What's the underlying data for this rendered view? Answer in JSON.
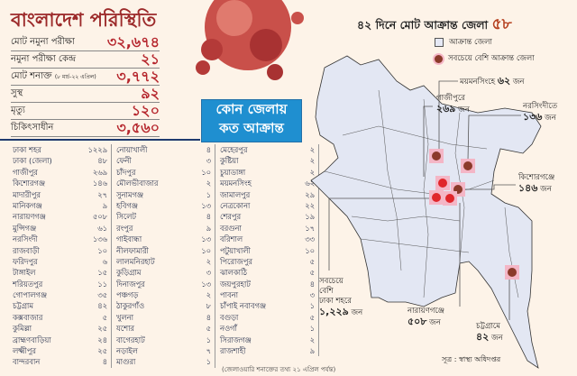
{
  "title": "বাংলাদেশ পরিস্থিতি",
  "stats": [
    {
      "label": "মোট নমুনা পরীক্ষা",
      "value": "৩২,৬৭৪"
    },
    {
      "label": "নমুনা পরীক্ষা কেন্দ্র",
      "value": "২১"
    },
    {
      "label": "মোট শনাক্ত",
      "note": "(৮ মার্চ-২২ এপ্রিল)",
      "value": "৩,৭৭২"
    },
    {
      "label": "সুস্থ",
      "value": "৯২"
    },
    {
      "label": "মৃত্যু",
      "value": "১২০"
    },
    {
      "label": "চিকিৎসাধীন",
      "value": "৩,৫৬০"
    }
  ],
  "district_box": {
    "line1": "কোন জেলায়",
    "line2": "কত আক্রান্ত"
  },
  "columns": [
    [
      [
        "ঢাকা শহর",
        "১২২৯"
      ],
      [
        "ঢাকা (জেলা)",
        "৪৮"
      ],
      [
        "গাজীপুর",
        "২৬৯"
      ],
      [
        "কিশোরগঞ্জ",
        "১৪৬"
      ],
      [
        "মাদারীপুর",
        "২৭"
      ],
      [
        "মানিকগঞ্জ",
        "৯"
      ],
      [
        "নারায়ণগঞ্জ",
        "৫০৮"
      ],
      [
        "মুন্সিগঞ্জ",
        "৬১"
      ],
      [
        "নরসিংদী",
        "১৩৬"
      ],
      [
        "রাজবাড়ী",
        "১০"
      ],
      [
        "ফরিদপুর",
        "৬"
      ],
      [
        "টাঙ্গাইল",
        "১৫"
      ],
      [
        "শরিয়তপুর",
        "১১"
      ],
      [
        "গোপালগঞ্জ",
        "৩৫"
      ],
      [
        "চট্টগ্রাম",
        "৪২"
      ],
      [
        "কক্সবাজার",
        "৫"
      ],
      [
        "কুমিল্লা",
        "২৫"
      ],
      [
        "ব্রাহ্মণবাড়িয়া",
        "২৪"
      ],
      [
        "লক্ষ্মীপুর",
        "২৫"
      ],
      [
        "বান্দরবান",
        "৪"
      ]
    ],
    [
      [
        "নোয়াখালী",
        "৪"
      ],
      [
        "ফেনী",
        "৩"
      ],
      [
        "চাঁদপুর",
        "১০"
      ],
      [
        "মৌলভীবাজার",
        "২"
      ],
      [
        "সুনামগঞ্জ",
        "১"
      ],
      [
        "হবিগঞ্জ",
        "১৩"
      ],
      [
        "সিলেট",
        "৪"
      ],
      [
        "রংপুর",
        "৯"
      ],
      [
        "গাইবান্ধা",
        "১৩"
      ],
      [
        "নীলফামারী",
        "১০"
      ],
      [
        "লালমনিরহাট",
        "২"
      ],
      [
        "কুড়িগ্রাম",
        "৩"
      ],
      [
        "দিনাজপুর",
        "১৩"
      ],
      [
        "পঞ্চগড়",
        "২"
      ],
      [
        "ঠাকুরগাঁও",
        "৮"
      ],
      [
        "খুলনা",
        "৪"
      ],
      [
        "যশোর",
        "৫"
      ],
      [
        "বাগেরহাট",
        "১"
      ],
      [
        "নড়াইল",
        "৭"
      ],
      [
        "মাগুরা",
        "১"
      ]
    ],
    [
      [
        "মেহেরপুর",
        "২"
      ],
      [
        "কুষ্টিয়া",
        "২"
      ],
      [
        "চুয়াডাঙ্গা",
        "২"
      ],
      [
        "ময়মনসিংহ",
        "৬২"
      ],
      [
        "জামালপুর",
        "২৯"
      ],
      [
        "নেত্রকোনা",
        "২২"
      ],
      [
        "শেরপুর",
        "১৯"
      ],
      [
        "বরগুনা",
        "১৭"
      ],
      [
        "বরিশাল",
        "৩৩"
      ],
      [
        "পটুয়াখালী",
        "১০"
      ],
      [
        "পিরোজপুর",
        "৫"
      ],
      [
        "ঝালকাঠি",
        "৫"
      ],
      [
        "জয়পুরহাট",
        "৪"
      ],
      [
        "পাবনা",
        "৩"
      ],
      [
        "চাঁপাই নবাবগঞ্জ",
        "১"
      ],
      [
        "বগুড়া",
        "৫"
      ],
      [
        "নওগাঁ",
        "১"
      ],
      [
        "সিরাজগঞ্জ",
        "২"
      ],
      [
        "রাজশাহী",
        "৯"
      ]
    ]
  ],
  "footnote": "(জেলাওয়ারি শনাক্তের তথ্য ২১ এপ্রিল পর্যন্ত)",
  "map": {
    "title": "৪২ দিনে মোট আক্রান্ত জেলা",
    "title_count": "৫৮",
    "legend": {
      "affected": "আক্রান্ত জেলা",
      "most_affected": "সবচেয়ে বেশি আক্রান্ত জেলা"
    },
    "colors": {
      "fill": "#e3e7f3",
      "dot": "#8b3a2a",
      "dot_red": "#e0262b",
      "highlight": "#f4b6c6"
    },
    "callouts": {
      "mymensingh": {
        "label": "ময়মনসিংহে",
        "value": "৬২",
        "unit": "জন"
      },
      "gazipur": {
        "label": "গাজীপুরে",
        "value": "২৬৯",
        "unit": "জন"
      },
      "narsingdi": {
        "label": "নরসিংদীতে",
        "value": "১৩৬",
        "unit": "জন"
      },
      "kishoreganj": {
        "label": "কিশোরগঞ্জে",
        "value": "১৪৬",
        "unit": "জন"
      },
      "dhaka": {
        "line1": "সবচেয়ে",
        "line2": "বেশি",
        "line3": "ঢাকা শহরে",
        "value": "১,২২৯",
        "unit": "জন"
      },
      "narayanganj": {
        "label": "নারায়ণগঞ্জে",
        "value": "৫০৮",
        "unit": "জন"
      },
      "chattogram": {
        "label": "চট্টগ্রামে",
        "value": "৪২",
        "unit": "জন"
      }
    },
    "source": "সূত্র : স্বাস্থ্য অধিদপ্তর"
  }
}
